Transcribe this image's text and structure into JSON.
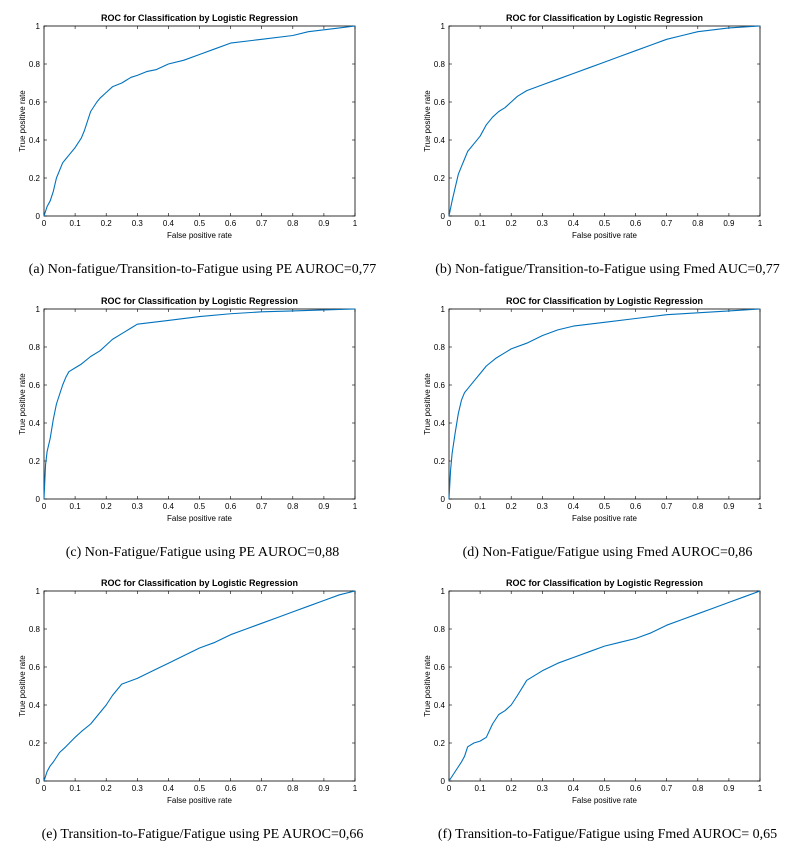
{
  "colors": {
    "curve": "#0072BD",
    "axis": "#000000",
    "background": "#ffffff"
  },
  "chart_data": [
    {
      "type": "line",
      "title": "ROC for Classification by Logistic Regression",
      "xlabel": "False positive rate",
      "ylabel": "True positive rate",
      "xlim": [
        0,
        1
      ],
      "ylim": [
        0,
        1
      ],
      "xticks": [
        "0",
        "0.1",
        "0.2",
        "0.3",
        "0.4",
        "0.5",
        "0.6",
        "0.7",
        "0.8",
        "0.9",
        "1"
      ],
      "yticks": [
        "0",
        "0.2",
        "0.4",
        "0.6",
        "0.8",
        "1"
      ],
      "caption": "(a) Non-fatigue/Transition-to-Fatigue using PE AUROC=0,77",
      "series": [
        {
          "name": "ROC",
          "x": [
            0,
            0.01,
            0.02,
            0.03,
            0.04,
            0.05,
            0.06,
            0.07,
            0.08,
            0.1,
            0.12,
            0.13,
            0.14,
            0.15,
            0.17,
            0.18,
            0.2,
            0.22,
            0.25,
            0.28,
            0.3,
            0.33,
            0.36,
            0.4,
            0.45,
            0.5,
            0.55,
            0.6,
            0.7,
            0.8,
            0.85,
            0.9,
            0.95,
            1
          ],
          "y": [
            0,
            0.05,
            0.08,
            0.13,
            0.2,
            0.24,
            0.28,
            0.3,
            0.32,
            0.36,
            0.41,
            0.45,
            0.5,
            0.55,
            0.6,
            0.62,
            0.65,
            0.68,
            0.7,
            0.73,
            0.74,
            0.76,
            0.77,
            0.8,
            0.82,
            0.85,
            0.88,
            0.91,
            0.93,
            0.95,
            0.97,
            0.98,
            0.99,
            1
          ]
        }
      ]
    },
    {
      "type": "line",
      "title": "ROC for Classification by Logistic Regression",
      "xlabel": "False positive rate",
      "ylabel": "True positive rate",
      "xlim": [
        0,
        1
      ],
      "ylim": [
        0,
        1
      ],
      "xticks": [
        "0",
        "0.1",
        "0.2",
        "0.3",
        "0.4",
        "0.5",
        "0.6",
        "0.7",
        "0.8",
        "0.9",
        "1"
      ],
      "yticks": [
        "0",
        "0.2",
        "0.4",
        "0.6",
        "0.8",
        "1"
      ],
      "caption": "(b) Non-fatigue/Transition-to-Fatigue using Fmed AUC=0,77",
      "series": [
        {
          "name": "ROC",
          "x": [
            0,
            0.01,
            0.02,
            0.03,
            0.04,
            0.05,
            0.06,
            0.08,
            0.1,
            0.12,
            0.14,
            0.16,
            0.18,
            0.2,
            0.22,
            0.25,
            0.3,
            0.35,
            0.4,
            0.45,
            0.5,
            0.55,
            0.6,
            0.65,
            0.7,
            0.75,
            0.8,
            0.85,
            0.9,
            0.95,
            1
          ],
          "y": [
            0,
            0.08,
            0.15,
            0.22,
            0.26,
            0.3,
            0.34,
            0.38,
            0.42,
            0.48,
            0.52,
            0.55,
            0.57,
            0.6,
            0.63,
            0.66,
            0.69,
            0.72,
            0.75,
            0.78,
            0.81,
            0.84,
            0.87,
            0.9,
            0.93,
            0.95,
            0.97,
            0.98,
            0.99,
            0.995,
            1
          ]
        }
      ]
    },
    {
      "type": "line",
      "title": "ROC for Classification by Logistic Regression",
      "xlabel": "False positive rate",
      "ylabel": "True positive rate",
      "xlim": [
        0,
        1
      ],
      "ylim": [
        0,
        1
      ],
      "xticks": [
        "0",
        "0.1",
        "0.2",
        "0.3",
        "0.4",
        "0.5",
        "0.6",
        "0.7",
        "0.8",
        "0.9",
        "1"
      ],
      "yticks": [
        "0",
        "0.2",
        "0.4",
        "0.6",
        "0.8",
        "1"
      ],
      "caption": "(c) Non-Fatigue/Fatigue using PE AUROC=0,88",
      "series": [
        {
          "name": "ROC",
          "x": [
            0,
            0.005,
            0.01,
            0.02,
            0.03,
            0.04,
            0.05,
            0.06,
            0.07,
            0.08,
            0.1,
            0.12,
            0.15,
            0.18,
            0.2,
            0.22,
            0.25,
            0.28,
            0.3,
            0.35,
            0.4,
            0.5,
            0.6,
            0.7,
            0.8,
            0.9,
            1
          ],
          "y": [
            0,
            0.18,
            0.25,
            0.32,
            0.42,
            0.5,
            0.55,
            0.6,
            0.64,
            0.67,
            0.69,
            0.71,
            0.75,
            0.78,
            0.81,
            0.84,
            0.87,
            0.9,
            0.92,
            0.93,
            0.94,
            0.96,
            0.975,
            0.985,
            0.99,
            0.995,
            1
          ]
        }
      ]
    },
    {
      "type": "line",
      "title": "ROC for Classification by Logistic Regression",
      "xlabel": "False positive rate",
      "ylabel": "True positive rate",
      "xlim": [
        0,
        1
      ],
      "ylim": [
        0,
        1
      ],
      "xticks": [
        "0",
        "0.1",
        "0.2",
        "0.3",
        "0.4",
        "0.5",
        "0.6",
        "0.7",
        "0.8",
        "0.9",
        "1"
      ],
      "yticks": [
        "0",
        "0.2",
        "0.4",
        "0.6",
        "0.8",
        "1"
      ],
      "caption": "(d) Non-Fatigue/Fatigue using Fmed AUROC=0,86",
      "series": [
        {
          "name": "ROC",
          "x": [
            0,
            0.005,
            0.01,
            0.02,
            0.03,
            0.04,
            0.05,
            0.06,
            0.08,
            0.1,
            0.12,
            0.15,
            0.18,
            0.2,
            0.25,
            0.3,
            0.35,
            0.4,
            0.5,
            0.6,
            0.7,
            0.8,
            0.9,
            1
          ],
          "y": [
            0,
            0.15,
            0.24,
            0.35,
            0.45,
            0.52,
            0.56,
            0.58,
            0.62,
            0.66,
            0.7,
            0.74,
            0.77,
            0.79,
            0.82,
            0.86,
            0.89,
            0.91,
            0.93,
            0.95,
            0.97,
            0.98,
            0.99,
            1
          ]
        }
      ]
    },
    {
      "type": "line",
      "title": "ROC for Classification by Logistic Regression",
      "xlabel": "False positive rate",
      "ylabel": "True positive rate",
      "xlim": [
        0,
        1
      ],
      "ylim": [
        0,
        1
      ],
      "xticks": [
        "0",
        "0.1",
        "0.2",
        "0.3",
        "0.4",
        "0.5",
        "0.6",
        "0.7",
        "0.8",
        "0.9",
        "1"
      ],
      "yticks": [
        "0",
        "0.2",
        "0.4",
        "0.6",
        "0.8",
        "1"
      ],
      "caption": "(e) Transition-to-Fatigue/Fatigue using PE AUROC=0,66",
      "series": [
        {
          "name": "ROC",
          "x": [
            0,
            0.01,
            0.02,
            0.03,
            0.05,
            0.07,
            0.1,
            0.12,
            0.15,
            0.17,
            0.2,
            0.22,
            0.25,
            0.3,
            0.35,
            0.4,
            0.45,
            0.5,
            0.55,
            0.6,
            0.65,
            0.7,
            0.75,
            0.8,
            0.85,
            0.9,
            0.95,
            1
          ],
          "y": [
            0,
            0.05,
            0.08,
            0.1,
            0.15,
            0.18,
            0.23,
            0.26,
            0.3,
            0.34,
            0.4,
            0.45,
            0.51,
            0.54,
            0.58,
            0.62,
            0.66,
            0.7,
            0.73,
            0.77,
            0.8,
            0.83,
            0.86,
            0.89,
            0.92,
            0.95,
            0.98,
            1
          ]
        }
      ]
    },
    {
      "type": "line",
      "title": "ROC for Classification by Logistic Regression",
      "xlabel": "False positive rate",
      "ylabel": "True positive rate",
      "xlim": [
        0,
        1
      ],
      "ylim": [
        0,
        1
      ],
      "xticks": [
        "0",
        "0.1",
        "0.2",
        "0.3",
        "0.4",
        "0.5",
        "0.6",
        "0.7",
        "0.8",
        "0.9",
        "1"
      ],
      "yticks": [
        "0",
        "0.2",
        "0.4",
        "0.6",
        "0.8",
        "1"
      ],
      "caption": "(f) Transition-to-Fatigue/Fatigue using Fmed AUROC= 0,65",
      "series": [
        {
          "name": "ROC",
          "x": [
            0,
            0.02,
            0.04,
            0.05,
            0.06,
            0.08,
            0.1,
            0.12,
            0.14,
            0.16,
            0.18,
            0.2,
            0.22,
            0.25,
            0.3,
            0.35,
            0.4,
            0.45,
            0.5,
            0.55,
            0.6,
            0.65,
            0.7,
            0.75,
            0.8,
            0.85,
            0.9,
            0.95,
            1
          ],
          "y": [
            0,
            0.05,
            0.1,
            0.13,
            0.18,
            0.2,
            0.21,
            0.23,
            0.3,
            0.35,
            0.37,
            0.4,
            0.45,
            0.53,
            0.58,
            0.62,
            0.65,
            0.68,
            0.71,
            0.73,
            0.75,
            0.78,
            0.82,
            0.85,
            0.88,
            0.91,
            0.94,
            0.97,
            1
          ]
        }
      ]
    }
  ]
}
